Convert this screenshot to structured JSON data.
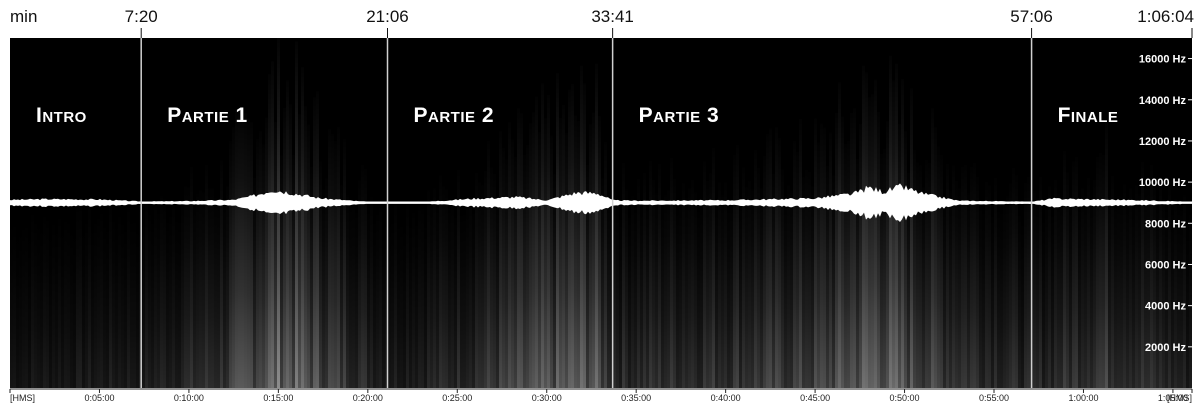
{
  "chart_data": {
    "type": "heatmap",
    "description_units": "time axis in seconds, frequency axis in Hz",
    "x_range": [
      0,
      3964
    ],
    "y_range": [
      0,
      17000
    ],
    "unit_label": "min",
    "time_marks": [
      {
        "label": "7:20",
        "t": 440
      },
      {
        "label": "21:06",
        "t": 1266
      },
      {
        "label": "33:41",
        "t": 2021
      },
      {
        "label": "57:06",
        "t": 3426
      },
      {
        "label": "1:06:04",
        "t": 3964
      }
    ],
    "sections": [
      {
        "label": "Intro",
        "start": 0,
        "end": 440
      },
      {
        "label": "Partie 1",
        "start": 440,
        "end": 1266
      },
      {
        "label": "Partie 2",
        "start": 1266,
        "end": 2021
      },
      {
        "label": "Partie 3",
        "start": 2021,
        "end": 3426
      },
      {
        "label": "Finale",
        "start": 3426,
        "end": 3964
      }
    ],
    "frequency_ticks": [
      {
        "label": "16000 Hz",
        "hz": 16000
      },
      {
        "label": "14000 Hz",
        "hz": 14000
      },
      {
        "label": "12000 Hz",
        "hz": 12000
      },
      {
        "label": "10000 Hz",
        "hz": 10000
      },
      {
        "label": "8000 Hz",
        "hz": 8000
      },
      {
        "label": "6000 Hz",
        "hz": 6000
      },
      {
        "label": "4000 Hz",
        "hz": 4000
      },
      {
        "label": "2000 Hz",
        "hz": 2000
      }
    ],
    "time_ticks": [
      {
        "label": "[HMS]",
        "t": 0
      },
      {
        "label": "0:05:00",
        "t": 300
      },
      {
        "label": "0:10:00",
        "t": 600
      },
      {
        "label": "0:15:00",
        "t": 900
      },
      {
        "label": "0:20:00",
        "t": 1200
      },
      {
        "label": "0:25:00",
        "t": 1500
      },
      {
        "label": "0:30:00",
        "t": 1800
      },
      {
        "label": "0:35:00",
        "t": 2100
      },
      {
        "label": "0:40:00",
        "t": 2400
      },
      {
        "label": "0:45:00",
        "t": 2700
      },
      {
        "label": "0:50:00",
        "t": 3000
      },
      {
        "label": "0:55:00",
        "t": 3300
      },
      {
        "label": "1:00:00",
        "t": 3600
      },
      {
        "label": "1:05:00",
        "t": 3900
      },
      {
        "label": "[HMS]",
        "t": 3964
      }
    ],
    "waveform_envelope": [
      {
        "t": 0,
        "a": 0.14
      },
      {
        "t": 120,
        "a": 0.18
      },
      {
        "t": 300,
        "a": 0.16
      },
      {
        "t": 440,
        "a": 0.06
      },
      {
        "t": 600,
        "a": 0.08
      },
      {
        "t": 750,
        "a": 0.14
      },
      {
        "t": 820,
        "a": 0.35
      },
      {
        "t": 880,
        "a": 0.65
      },
      {
        "t": 940,
        "a": 0.5
      },
      {
        "t": 1040,
        "a": 0.22
      },
      {
        "t": 1180,
        "a": 0.06
      },
      {
        "t": 1266,
        "a": 0.03
      },
      {
        "t": 1400,
        "a": 0.05
      },
      {
        "t": 1550,
        "a": 0.2
      },
      {
        "t": 1700,
        "a": 0.28
      },
      {
        "t": 1800,
        "a": 0.12
      },
      {
        "t": 1900,
        "a": 0.5
      },
      {
        "t": 1970,
        "a": 0.48
      },
      {
        "t": 2021,
        "a": 0.12
      },
      {
        "t": 2100,
        "a": 0.1
      },
      {
        "t": 2400,
        "a": 0.12
      },
      {
        "t": 2700,
        "a": 0.22
      },
      {
        "t": 2830,
        "a": 0.45
      },
      {
        "t": 2880,
        "a": 0.75
      },
      {
        "t": 2930,
        "a": 0.55
      },
      {
        "t": 2990,
        "a": 0.8
      },
      {
        "t": 3060,
        "a": 0.45
      },
      {
        "t": 3180,
        "a": 0.1
      },
      {
        "t": 3426,
        "a": 0.05
      },
      {
        "t": 3500,
        "a": 0.2
      },
      {
        "t": 3700,
        "a": 0.15
      },
      {
        "t": 3850,
        "a": 0.1
      },
      {
        "t": 3964,
        "a": 0.04
      }
    ],
    "spectral_energy": [
      {
        "t": 0,
        "e": 0.15
      },
      {
        "t": 440,
        "e": 0.2
      },
      {
        "t": 700,
        "e": 0.35
      },
      {
        "t": 900,
        "e": 0.75
      },
      {
        "t": 1050,
        "e": 0.5
      },
      {
        "t": 1266,
        "e": 0.2
      },
      {
        "t": 1500,
        "e": 0.3
      },
      {
        "t": 1800,
        "e": 0.55
      },
      {
        "t": 1950,
        "e": 0.65
      },
      {
        "t": 2021,
        "e": 0.3
      },
      {
        "t": 2300,
        "e": 0.35
      },
      {
        "t": 2700,
        "e": 0.45
      },
      {
        "t": 2900,
        "e": 0.7
      },
      {
        "t": 3100,
        "e": 0.45
      },
      {
        "t": 3426,
        "e": 0.25
      },
      {
        "t": 3650,
        "e": 0.45
      },
      {
        "t": 3964,
        "e": 0.2
      }
    ],
    "colors": {
      "background": "#000000",
      "waveform": "#ffffff",
      "divider": "#d0d0d0",
      "page": "#ffffff"
    }
  }
}
